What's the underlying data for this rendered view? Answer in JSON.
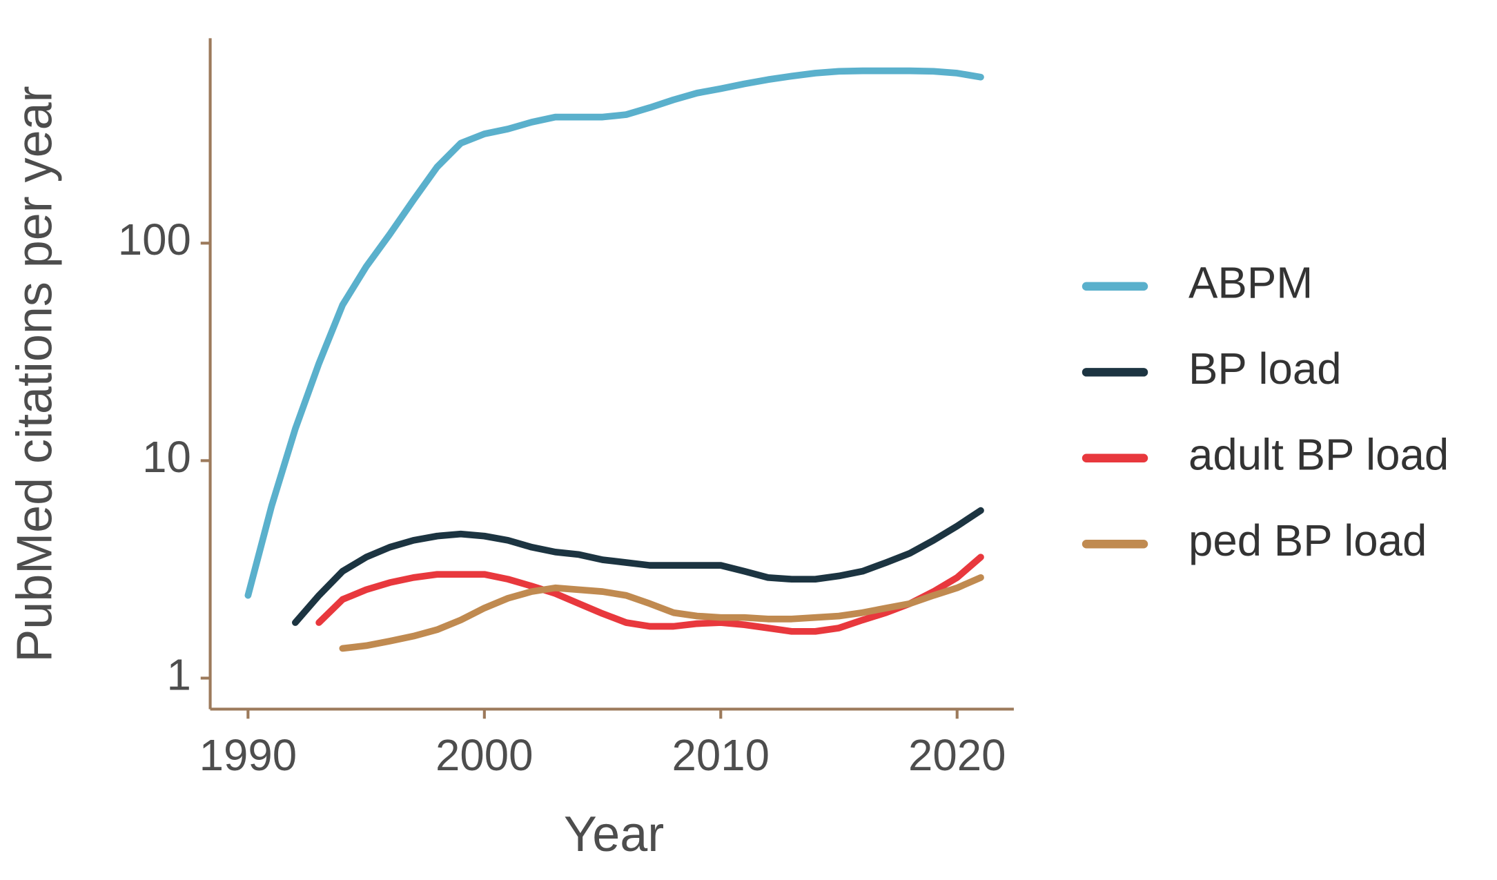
{
  "chart_data": {
    "type": "line",
    "x_label": "Year",
    "y_label": "PubMed citations per year",
    "log_y": true,
    "x": [
      1990,
      1991,
      1992,
      1993,
      1994,
      1995,
      1996,
      1997,
      1998,
      1999,
      2000,
      2001,
      2002,
      2003,
      2004,
      2005,
      2006,
      2007,
      2008,
      2009,
      2010,
      2011,
      2012,
      2013,
      2014,
      2015,
      2016,
      2017,
      2018,
      2019,
      2020,
      2021
    ],
    "series": [
      {
        "name": "ABPM",
        "color": "#5ab0cc",
        "values": [
          2.4,
          6.2,
          14,
          28,
          52,
          78,
          110,
          158,
          224,
          288,
          318,
          335,
          360,
          380,
          380,
          380,
          390,
          420,
          456,
          490,
          513,
          540,
          565,
          586,
          605,
          617,
          620,
          620,
          620,
          617,
          605,
          580
        ]
      },
      {
        "name": "BP load",
        "color": "#1c3441",
        "values": [
          null,
          null,
          1.8,
          2.4,
          3.1,
          3.6,
          4.0,
          4.3,
          4.5,
          4.6,
          4.5,
          4.3,
          4.0,
          3.8,
          3.7,
          3.5,
          3.4,
          3.3,
          3.3,
          3.3,
          3.3,
          3.1,
          2.9,
          2.85,
          2.85,
          2.95,
          3.1,
          3.4,
          3.75,
          4.3,
          5.0,
          5.9
        ]
      },
      {
        "name": "adult BP load",
        "color": "#e8383d",
        "values": [
          null,
          null,
          null,
          1.8,
          2.3,
          2.55,
          2.75,
          2.9,
          3.0,
          3.0,
          3.0,
          2.85,
          2.65,
          2.45,
          2.2,
          1.98,
          1.8,
          1.73,
          1.73,
          1.78,
          1.8,
          1.76,
          1.7,
          1.64,
          1.64,
          1.7,
          1.85,
          2.0,
          2.2,
          2.5,
          2.9,
          3.6
        ]
      },
      {
        "name": "ped BP load",
        "color": "#c08a50",
        "values": [
          null,
          null,
          null,
          null,
          1.37,
          1.41,
          1.48,
          1.56,
          1.67,
          1.85,
          2.1,
          2.33,
          2.5,
          2.6,
          2.55,
          2.5,
          2.4,
          2.2,
          2.0,
          1.93,
          1.9,
          1.9,
          1.87,
          1.87,
          1.9,
          1.93,
          2.0,
          2.1,
          2.2,
          2.4,
          2.6,
          2.9
        ]
      }
    ],
    "xlim": [
      1988.4,
      2022.4
    ],
    "ylim": [
      0.72,
      876
    ],
    "xticks": [
      1990,
      2000,
      2010,
      2020
    ],
    "yticks": [
      1,
      10,
      100
    ],
    "axis_color": "#9c7a5b",
    "legend": "right"
  }
}
